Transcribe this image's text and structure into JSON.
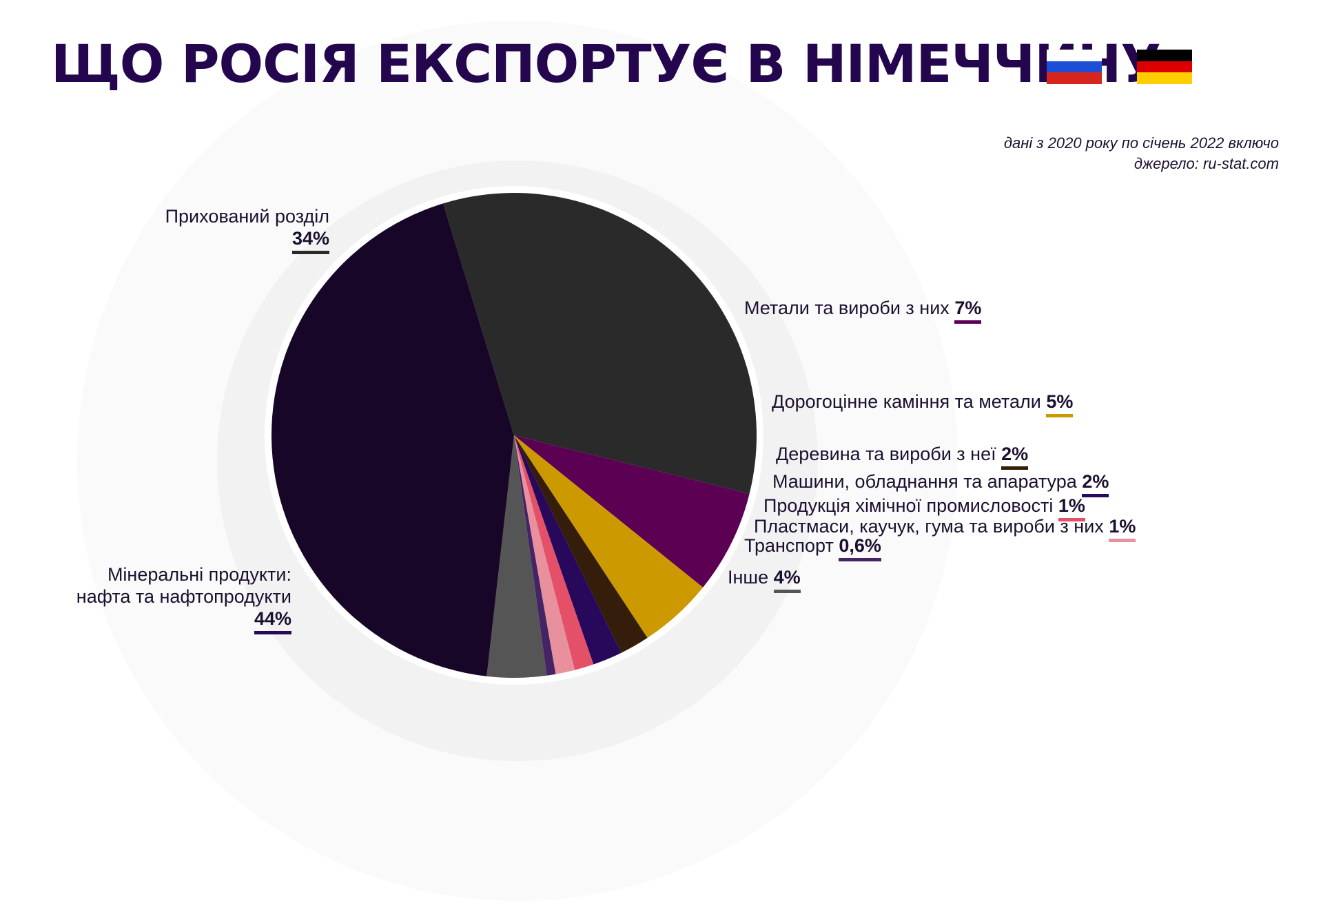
{
  "title": "ЩО РОСІЯ ЕКСПОРТУЄ В НІМЕЧЧИНУ",
  "notes": {
    "period": "дані з 2020 року по січень 2022 включо",
    "source": "джерело: ru-stat.com"
  },
  "flags": {
    "russia": [
      "#ffffff",
      "#1c4fd6",
      "#d7261e"
    ],
    "germany": [
      "#000000",
      "#dd0000",
      "#ffce00"
    ]
  },
  "chart_data": {
    "type": "pie",
    "slices": [
      {
        "label": "Прихований розділ",
        "pct_text": "34%",
        "value": 34,
        "color": "#2a2a2a"
      },
      {
        "label": "Метали та вироби з них",
        "pct_text": "7%",
        "value": 7,
        "color": "#5c0054"
      },
      {
        "label": "Дорогоцінне каміння та метали",
        "pct_text": "5%",
        "value": 5,
        "color": "#cc9a00"
      },
      {
        "label": "Деревина та вироби з неї",
        "pct_text": "2%",
        "value": 2,
        "color": "#341d0a"
      },
      {
        "label": "Машини, обладнання та апаратура",
        "pct_text": "2%",
        "value": 2,
        "color": "#27085a"
      },
      {
        "label": "Продукція хімічної промисловості",
        "pct_text": "1%",
        "value": 1.3,
        "color": "#e35068"
      },
      {
        "label": "Пластмаси, каучук, гума та вироби з них",
        "pct_text": "1%",
        "value": 1.3,
        "color": "#e8909e"
      },
      {
        "label": "Транспорт",
        "pct_text": "0,6%",
        "value": 0.6,
        "color": "#452466"
      },
      {
        "label": "Інше",
        "pct_text": "4%",
        "value": 4,
        "color": "#555555"
      },
      {
        "label_lines": [
          "Мінеральні продукти:",
          "нафта та нафтопродукти"
        ],
        "pct_text": "44%",
        "value": 44,
        "color": "#180629"
      }
    ],
    "start_direction": "between top and left, rotating clockwise"
  }
}
